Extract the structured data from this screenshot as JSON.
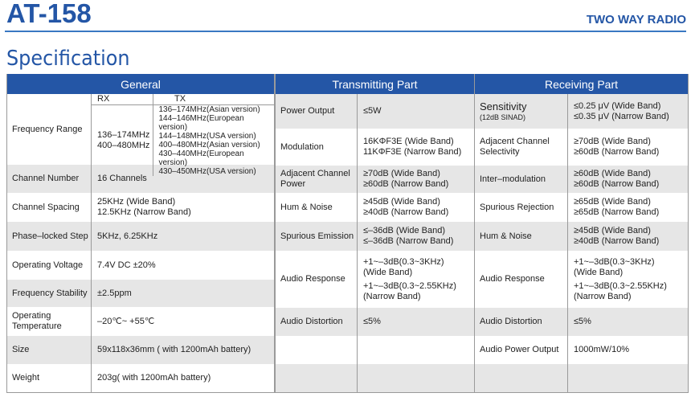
{
  "header": {
    "model": "AT-158",
    "category": "TWO WAY RADIO",
    "section_title": "Specification"
  },
  "colors": {
    "brand_blue": "#2456a6",
    "row_stripe": "#e6e6e6"
  },
  "general": {
    "title": "General",
    "frequency_range": {
      "label": "Frequency Range",
      "rx_header": "RX",
      "tx_header": "TX",
      "rx": [
        "136–174MHz",
        "400–480MHz"
      ],
      "tx": [
        "136–174MHz(Asian version)",
        "144–146MHz(European version)",
        "144–148MHz(USA version)",
        "400–480MHz(Asian version)",
        "430–440MHz(European version)",
        "430–450MHz(USA version)"
      ]
    },
    "rows": [
      {
        "label": "Channel Number",
        "value": [
          "16 Channels"
        ]
      },
      {
        "label": "Channel Spacing",
        "value": [
          "25KHz (Wide Band)",
          "12.5KHz (Narrow Band)"
        ]
      },
      {
        "label": "Phase–locked Step",
        "value": [
          "5KHz, 6.25KHz"
        ]
      },
      {
        "label": "Operating Voltage",
        "value": [
          "7.4V DC  ±20%"
        ]
      },
      {
        "label": "Frequency Stability",
        "value": [
          "±2.5ppm"
        ]
      },
      {
        "label": "Operating Temperature",
        "value": [
          "–20℃~ +55℃"
        ]
      },
      {
        "label": "Size",
        "value": [
          "59x118x36mm ( with 1200mAh battery)"
        ]
      },
      {
        "label": "Weight",
        "value": [
          "203g( with 1200mAh battery)"
        ]
      }
    ]
  },
  "transmitting": {
    "title": "Transmitting Part",
    "rows": [
      {
        "label": "Power Output",
        "value": [
          "≤5W"
        ]
      },
      {
        "label": "Modulation",
        "value": [
          "16KΦF3E (Wide Band)",
          "11KΦF3E (Narrow Band)"
        ]
      },
      {
        "label": "Adjacent Channel Power",
        "value": [
          "≥70dB (Wide Band)",
          "≥60dB (Narrow Band)"
        ]
      },
      {
        "label": "Hum & Noise",
        "value": [
          "≥45dB (Wide Band)",
          "≥40dB (Narrow Band)"
        ]
      },
      {
        "label": "Spurious Emission",
        "value": [
          "≤–36dB (Wide Band)",
          "≤–36dB (Narrow Band)"
        ]
      },
      {
        "label": "Audio Response",
        "value": [
          "+1~–3dB(0.3~3KHz)",
          "(Wide Band)",
          "+1~–3dB(0.3~2.55KHz)",
          "(Narrow Band)"
        ]
      },
      {
        "label": "Audio Distortion",
        "value": [
          "≤5%"
        ]
      },
      {
        "label": "",
        "value": []
      },
      {
        "label": "",
        "value": []
      }
    ]
  },
  "receiving": {
    "title": "Receiving Part",
    "rows": [
      {
        "label": "Sensitivity",
        "sublabel": "(12dB SINAD)",
        "value": [
          "≤0.25 μV (Wide Band)",
          "≤0.35 μV (Narrow Band)"
        ]
      },
      {
        "label": "Adjacent Channel Selectivity",
        "value": [
          "≥70dB (Wide Band)",
          "≥60dB (Narrow Band)"
        ]
      },
      {
        "label": "Inter–modulation",
        "value": [
          "≥60dB (Wide Band)",
          "≥60dB (Narrow Band)"
        ]
      },
      {
        "label": "Spurious Rejection",
        "value": [
          "≥65dB (Wide Band)",
          "≥65dB (Narrow Band)"
        ]
      },
      {
        "label": "Hum & Noise",
        "value": [
          "≥45dB (Wide Band)",
          "≥40dB (Narrow Band)"
        ]
      },
      {
        "label": "Audio Response",
        "value": [
          "+1~–3dB(0.3~3KHz)",
          "(Wide Band)",
          "+1~–3dB(0.3~2.55KHz)",
          "(Narrow Band)"
        ]
      },
      {
        "label": "Audio Distortion",
        "value": [
          "≤5%"
        ]
      },
      {
        "label": "Audio Power Output",
        "value": [
          "1000mW/10%"
        ]
      },
      {
        "label": "",
        "value": []
      }
    ]
  }
}
